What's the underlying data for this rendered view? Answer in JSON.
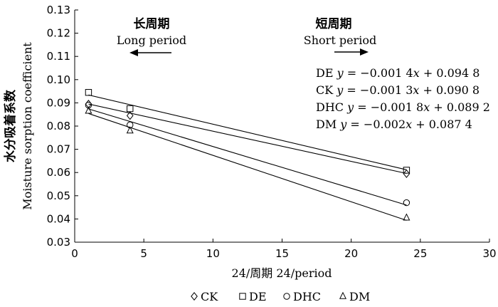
{
  "chart_data": {
    "type": "scatter",
    "xlabel": "24/周期 24/period",
    "ylabel_cn": "水分吸着系数",
    "ylabel_en": "Moisture sorption coefficient",
    "xlim": [
      0,
      30
    ],
    "ylim": [
      0.03,
      0.13
    ],
    "xticks": [
      "0",
      "5",
      "10",
      "15",
      "20",
      "25",
      "30"
    ],
    "yticks": [
      "0.03",
      "0.04",
      "0.05",
      "0.06",
      "0.07",
      "0.08",
      "0.09",
      "0.10",
      "0.11",
      "0.12",
      "0.13"
    ],
    "grid": false,
    "legend_position": "bottom",
    "annotations": {
      "long": {
        "cn": "长周期",
        "en": "Long period"
      },
      "short": {
        "cn": "短周期",
        "en": "Short period"
      }
    },
    "series": [
      {
        "name": "CK",
        "marker": "diamond",
        "x": [
          1,
          4,
          24
        ],
        "y": [
          0.0895,
          0.0845,
          0.0595
        ],
        "fit": {
          "slope": -0.0013,
          "intercept": 0.0908
        },
        "equation": [
          "CK ",
          "y",
          " = −0.001 3",
          "x",
          " + 0.090 8"
        ]
      },
      {
        "name": "DE",
        "marker": "square",
        "x": [
          1,
          4,
          24
        ],
        "y": [
          0.0945,
          0.0875,
          0.061
        ],
        "fit": {
          "slope": -0.0014,
          "intercept": 0.0948
        },
        "equation": [
          "DE ",
          "y",
          " = −0.001 4",
          "x",
          " + 0.094 8"
        ]
      },
      {
        "name": "DHC",
        "marker": "circle",
        "x": [
          1,
          4,
          24
        ],
        "y": [
          0.089,
          0.0805,
          0.047
        ],
        "fit": {
          "slope": -0.0018,
          "intercept": 0.0892
        },
        "equation": [
          "DHC ",
          "y",
          " = −0.001 8",
          "x",
          " + 0.089 2"
        ]
      },
      {
        "name": "DM",
        "marker": "triangle",
        "x": [
          1,
          4,
          24
        ],
        "y": [
          0.0865,
          0.078,
          0.0405
        ],
        "fit": {
          "slope": -0.002,
          "intercept": 0.0874
        },
        "equation": [
          "DM ",
          "y",
          " = −0.002",
          "x",
          " + 0.087 4"
        ]
      }
    ]
  }
}
